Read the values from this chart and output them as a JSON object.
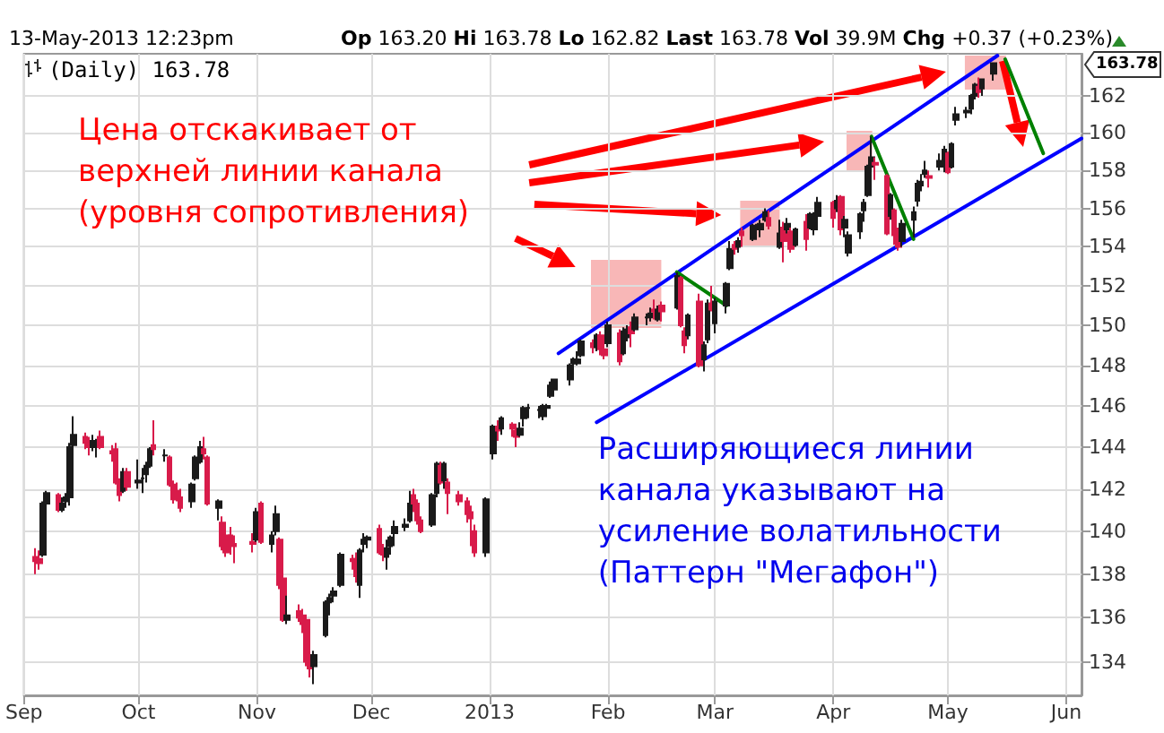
{
  "chart_data": {
    "type": "candlestick",
    "subtitle": "13-May-2013 12:23pm",
    "annotations": [
      "Op 163.20 Hi 163.78 Lo 162.82 Last 163.78 Vol 39.9M Chg +0.37 (+0.23%)",
      "(Daily) 163.78",
      "Цена отскакивает от\nверхней линии канала\n(уровня сопротивления)",
      "Расширяющиеся линии\nканала указывают на\nусиление волатильности\n(Паттерн \"Мегафон\")",
      "163.78"
    ],
    "colors": [
      "#d81b4a",
      "#d81b4a",
      "#1a1a1a",
      "#1a1a1a",
      "#d81b4a",
      "#1a1a1a",
      "#1a1a1a",
      "#1a1a1a",
      "#1a1a1a",
      "#d81b4a",
      "#d81b4a",
      "#1a1a1a",
      "#1a1a1a",
      "#d81b4a",
      "#d81b4a",
      "#d81b4a",
      "#d81b4a",
      "#1a1a1a",
      "#d81b4a",
      "#1a1a1a",
      "#1a1a1a",
      "#1a1a1a",
      "#1a1a1a",
      "#d81b4a",
      "#1a1a1a",
      "#d81b4a",
      "#d81b4a",
      "#d81b4a",
      "#d81b4a",
      "#1a1a1a",
      "#1a1a1a",
      "#1a1a1a",
      "#d81b4a",
      "#d81b4a",
      "#1a1a1a",
      "#d81b4a",
      "#d81b4a",
      "#d81b4a",
      "#d81b4a",
      "#d81b4a",
      "#1a1a1a",
      "#d81b4a",
      "#1a1a1a",
      "#1a1a1a",
      "#d81b4a",
      "#d81b4a",
      "#1a1a1a",
      "#d81b4a",
      "#d81b4a",
      "#d81b4a",
      "#d81b4a",
      "#1a1a1a",
      "#1a1a1a",
      "#1a1a1a",
      "#1a1a1a",
      "#1a1a1a",
      "#d81b4a",
      "#d81b4a",
      "#1a1a1a",
      "#1a1a1a",
      "#1a1a1a",
      "#d81b4a",
      "#d81b4a",
      "#1a1a1a",
      "#1a1a1a",
      "#1a1a1a",
      "#1a1a1a",
      "#1a1a1a",
      "#d81b4a",
      "#d81b4a",
      "#d81b4a",
      "#1a1a1a",
      "#1a1a1a",
      "#d81b4a",
      "#1a1a1a",
      "#d81b4a",
      "#d81b4a",
      "#d81b4a",
      "#d81b4a",
      "#d81b4a",
      "#1a1a1a",
      "#1a1a1a",
      "#d81b4a",
      "#1a1a1a",
      "#d81b4a",
      "#d81b4a",
      "#1a1a1a",
      "#1a1a1a",
      "#1a1a1a",
      "#1a1a1a",
      "#1a1a1a",
      "#1a1a1a",
      "#1a1a1a",
      "#1a1a1a",
      "#1a1a1a",
      "#1a1a1a",
      "#1a1a1a",
      "#1a1a1a",
      "#d81b4a",
      "#1a1a1a",
      "#d81b4a",
      "#d81b4a",
      "#1a1a1a",
      "#d81b4a",
      "#1a1a1a",
      "#1a1a1a",
      "#d81b4a",
      "#1a1a1a",
      "#1a1a1a",
      "#1a1a1a",
      "#d81b4a",
      "#1a1a1a",
      "#d81b4a",
      "#1a1a1a",
      "#d81b4a",
      "#d81b4a",
      "#1a1a1a",
      "#d81b4a",
      "#1a1a1a",
      "#1a1a1a",
      "#d81b4a",
      "#1a1a1a",
      "#1a1a1a",
      "#1a1a1a",
      "#d81b4a",
      "#1a1a1a",
      "#d81b4a",
      "#1a1a1a",
      "#1a1a1a",
      "#1a1a1a",
      "#1a1a1a",
      "#d81b4a",
      "#1a1a1a",
      "#d81b4a",
      "#1a1a1a",
      "#d81b4a",
      "#1a1a1a",
      "#d81b4a",
      "#1a1a1a",
      "#1a1a1a",
      "#1a1a1a",
      "#d81b4a",
      "#1a1a1a",
      "#d81b4a",
      "#1a1a1a",
      "#1a1a1a",
      "#1a1a1a",
      "#1a1a1a",
      "#1a1a1a",
      "#1a1a1a",
      "#d81b4a",
      "#d81b4a",
      "#1a1a1a",
      "#d81b4a",
      "#d81b4a",
      "#1a1a1a",
      "#1a1a1a",
      "#1a1a1a",
      "#1a1a1a",
      "#1a1a1a",
      "#d81b4a",
      "#1a1a1a",
      "#1a1a1a",
      "#d81b4a",
      "#1a1a1a",
      "#1a1a1a",
      "#1a1a1a",
      "#1a1a1a",
      "#1a1a1a",
      "#d81b4a",
      "#1a1a1a",
      "#1a1a1a"
    ],
    "log": true,
    "grid": true,
    "xlim": [
      "2012-09-01",
      "2013-06-05"
    ],
    "xticks": [
      {
        "value": "2012-09-01",
        "label": "Sep"
      },
      {
        "value": "2012-10-01",
        "label": "Oct"
      },
      {
        "value": "2012-11-01",
        "label": "Nov"
      },
      {
        "value": "2012-12-01",
        "label": "Dec"
      },
      {
        "value": "2013-01-01",
        "label": "2013"
      },
      {
        "value": "2013-02-01",
        "label": "Feb"
      },
      {
        "value": "2013-03-01",
        "label": "Mar"
      },
      {
        "value": "2013-04-01",
        "label": "Apr"
      },
      {
        "value": "2013-05-01",
        "label": "May"
      },
      {
        "value": "2013-06-01",
        "label": "Jun"
      }
    ],
    "ylim": [
      132.5,
      164.3
    ],
    "yticks": [
      134,
      136,
      138,
      140,
      142,
      144,
      146,
      148,
      150,
      152,
      154,
      156,
      158,
      160,
      162
    ],
    "x": [
      "2012-09-04",
      "2012-09-05",
      "2012-09-06",
      "2012-09-07",
      "2012-09-10",
      "2012-09-11",
      "2012-09-12",
      "2012-09-13",
      "2012-09-14",
      "2012-09-17",
      "2012-09-18",
      "2012-09-19",
      "2012-09-20",
      "2012-09-21",
      "2012-09-24",
      "2012-09-25",
      "2012-09-26",
      "2012-09-27",
      "2012-09-28",
      "2012-10-01",
      "2012-10-02",
      "2012-10-03",
      "2012-10-04",
      "2012-10-05",
      "2012-10-08",
      "2012-10-09",
      "2012-10-10",
      "2012-10-11",
      "2012-10-12",
      "2012-10-15",
      "2012-10-16",
      "2012-10-17",
      "2012-10-18",
      "2012-10-19",
      "2012-10-22",
      "2012-10-23",
      "2012-10-24",
      "2012-10-25",
      "2012-10-26",
      "2012-10-31",
      "2012-11-01",
      "2012-11-02",
      "2012-11-05",
      "2012-11-06",
      "2012-11-07",
      "2012-11-08",
      "2012-11-09",
      "2012-11-12",
      "2012-11-13",
      "2012-11-14",
      "2012-11-15",
      "2012-11-16",
      "2012-11-19",
      "2012-11-20",
      "2012-11-21",
      "2012-11-23",
      "2012-11-26",
      "2012-11-27",
      "2012-11-28",
      "2012-11-29",
      "2012-11-30",
      "2012-12-03",
      "2012-12-04",
      "2012-12-05",
      "2012-12-06",
      "2012-12-07",
      "2012-12-10",
      "2012-12-11",
      "2012-12-12",
      "2012-12-13",
      "2012-12-14",
      "2012-12-17",
      "2012-12-18",
      "2012-12-19",
      "2012-12-20",
      "2012-12-21",
      "2012-12-24",
      "2012-12-26",
      "2012-12-27",
      "2012-12-28",
      "2012-12-31",
      "2013-01-02",
      "2013-01-03",
      "2013-01-04",
      "2013-01-07",
      "2013-01-08",
      "2013-01-09",
      "2013-01-10",
      "2013-01-11",
      "2013-01-14",
      "2013-01-15",
      "2013-01-16",
      "2013-01-17",
      "2013-01-18",
      "2013-01-22",
      "2013-01-23",
      "2013-01-24",
      "2013-01-25",
      "2013-01-28",
      "2013-01-29",
      "2013-01-30",
      "2013-01-31",
      "2013-02-01",
      "2013-02-04",
      "2013-02-05",
      "2013-02-06",
      "2013-02-07",
      "2013-02-08",
      "2013-02-11",
      "2013-02-12",
      "2013-02-13",
      "2013-02-14",
      "2013-02-15",
      "2013-02-19",
      "2013-02-20",
      "2013-02-21",
      "2013-02-22",
      "2013-02-25",
      "2013-02-26",
      "2013-02-27",
      "2013-02-28",
      "2013-03-01",
      "2013-03-04",
      "2013-03-05",
      "2013-03-06",
      "2013-03-07",
      "2013-03-08",
      "2013-03-11",
      "2013-03-12",
      "2013-03-13",
      "2013-03-14",
      "2013-03-15",
      "2013-03-18",
      "2013-03-19",
      "2013-03-20",
      "2013-03-21",
      "2013-03-22",
      "2013-03-25",
      "2013-03-26",
      "2013-03-27",
      "2013-03-28",
      "2013-04-01",
      "2013-04-02",
      "2013-04-03",
      "2013-04-04",
      "2013-04-05",
      "2013-04-08",
      "2013-04-09",
      "2013-04-10",
      "2013-04-11",
      "2013-04-12",
      "2013-04-15",
      "2013-04-16",
      "2013-04-17",
      "2013-04-18",
      "2013-04-19",
      "2013-04-22",
      "2013-04-23",
      "2013-04-24",
      "2013-04-25",
      "2013-04-26",
      "2013-04-29",
      "2013-04-30",
      "2013-05-01",
      "2013-05-02",
      "2013-05-03",
      "2013-05-06",
      "2013-05-07",
      "2013-05-08",
      "2013-05-09",
      "2013-05-10",
      "2013-05-13"
    ],
    "ohlc": [
      [
        138.8,
        139.2,
        138.0,
        138.6
      ],
      [
        138.7,
        139.1,
        138.2,
        138.5
      ],
      [
        138.9,
        141.4,
        138.8,
        141.3
      ],
      [
        141.3,
        141.9,
        141.0,
        141.8
      ],
      [
        141.7,
        141.8,
        140.9,
        141.0
      ],
      [
        141.0,
        141.6,
        140.9,
        141.3
      ],
      [
        141.4,
        141.8,
        141.1,
        141.6
      ],
      [
        141.6,
        144.2,
        141.2,
        144.0
      ],
      [
        144.1,
        145.5,
        143.9,
        144.6
      ],
      [
        144.5,
        144.7,
        143.9,
        144.2
      ],
      [
        144.2,
        144.5,
        143.6,
        144.0
      ],
      [
        144.0,
        144.6,
        143.8,
        144.3
      ],
      [
        144.0,
        144.4,
        143.5,
        144.2
      ],
      [
        144.5,
        144.8,
        143.9,
        144.0
      ],
      [
        143.8,
        144.1,
        143.3,
        143.7
      ],
      [
        143.9,
        144.2,
        142.2,
        142.3
      ],
      [
        142.3,
        142.5,
        141.4,
        141.7
      ],
      [
        141.9,
        143.0,
        141.8,
        142.8
      ],
      [
        142.8,
        143.0,
        141.9,
        142.1
      ],
      [
        142.3,
        143.4,
        142.0,
        142.4
      ],
      [
        142.5,
        143.0,
        141.8,
        142.5
      ],
      [
        142.7,
        143.3,
        142.3,
        143.1
      ],
      [
        143.1,
        144.0,
        143.0,
        143.9
      ],
      [
        144.1,
        145.3,
        143.6,
        143.9
      ],
      [
        143.6,
        143.9,
        143.3,
        143.6
      ],
      [
        143.5,
        143.6,
        142.1,
        142.2
      ],
      [
        142.2,
        142.4,
        141.3,
        141.5
      ],
      [
        141.9,
        142.3,
        141.4,
        141.5
      ],
      [
        141.6,
        142.0,
        140.9,
        141.1
      ],
      [
        141.4,
        142.3,
        141.1,
        142.2
      ],
      [
        142.5,
        143.6,
        142.4,
        143.5
      ],
      [
        143.3,
        144.3,
        143.2,
        144.0
      ],
      [
        143.9,
        144.5,
        143.4,
        143.7
      ],
      [
        143.5,
        143.6,
        141.2,
        141.3
      ],
      [
        141.1,
        141.5,
        140.5,
        141.4
      ],
      [
        140.4,
        140.7,
        139.1,
        139.3
      ],
      [
        139.8,
        140.0,
        138.8,
        139.0
      ],
      [
        139.8,
        140.2,
        138.9,
        139.4
      ],
      [
        139.4,
        139.8,
        138.5,
        139.3
      ],
      [
        139.5,
        139.9,
        139.0,
        139.4
      ],
      [
        139.6,
        141.1,
        139.5,
        140.9
      ],
      [
        141.3,
        141.4,
        139.4,
        139.5
      ],
      [
        139.4,
        140.0,
        139.0,
        139.8
      ],
      [
        140.0,
        141.2,
        139.8,
        140.8
      ],
      [
        139.6,
        139.7,
        137.3,
        137.5
      ],
      [
        137.8,
        138.0,
        135.8,
        135.9
      ],
      [
        135.9,
        137.0,
        135.7,
        136.1
      ],
      [
        136.3,
        136.6,
        135.8,
        136.0
      ],
      [
        136.1,
        136.4,
        135.3,
        135.7
      ],
      [
        135.9,
        136.0,
        133.8,
        134.0
      ],
      [
        134.0,
        134.4,
        133.3,
        133.7
      ],
      [
        133.8,
        134.5,
        133.0,
        134.3
      ],
      [
        135.2,
        136.8,
        135.1,
        136.7
      ],
      [
        136.7,
        137.1,
        136.1,
        136.9
      ],
      [
        137.0,
        137.4,
        136.7,
        137.2
      ],
      [
        137.5,
        139.0,
        137.4,
        138.9
      ],
      [
        138.7,
        138.9,
        138.2,
        138.6
      ],
      [
        138.7,
        139.0,
        137.6,
        137.9
      ],
      [
        137.5,
        139.2,
        136.9,
        139.1
      ],
      [
        139.4,
        139.9,
        139.0,
        139.6
      ],
      [
        139.6,
        139.8,
        139.2,
        139.7
      ],
      [
        140.1,
        140.3,
        138.9,
        139.0
      ],
      [
        139.1,
        139.4,
        138.6,
        138.9
      ],
      [
        138.8,
        139.6,
        138.2,
        139.2
      ],
      [
        139.3,
        139.8,
        138.9,
        139.7
      ],
      [
        139.9,
        140.5,
        139.3,
        140.2
      ],
      [
        140.2,
        140.6,
        140.0,
        140.3
      ],
      [
        140.5,
        141.9,
        140.4,
        141.3
      ],
      [
        141.7,
        142.0,
        140.9,
        141.3
      ],
      [
        141.3,
        141.5,
        140.3,
        140.5
      ],
      [
        140.5,
        140.7,
        139.9,
        140.0
      ],
      [
        140.3,
        141.8,
        140.2,
        141.7
      ],
      [
        141.8,
        143.3,
        141.6,
        143.2
      ],
      [
        143.1,
        143.3,
        142.2,
        142.3
      ],
      [
        142.4,
        143.3,
        142.0,
        143.2
      ],
      [
        142.3,
        142.5,
        140.8,
        141.8
      ],
      [
        141.7,
        141.9,
        141.2,
        141.4
      ],
      [
        141.4,
        141.6,
        140.4,
        140.8
      ],
      [
        140.9,
        141.2,
        139.3,
        140.6
      ],
      [
        140.0,
        140.3,
        138.8,
        139.0
      ],
      [
        139.0,
        141.6,
        138.8,
        141.5
      ],
      [
        143.7,
        145.1,
        143.4,
        145.0
      ],
      [
        145.0,
        145.3,
        144.3,
        144.8
      ],
      [
        144.9,
        145.5,
        144.6,
        145.4
      ],
      [
        145.1,
        145.2,
        144.5,
        144.9
      ],
      [
        144.8,
        145.0,
        144.0,
        144.5
      ],
      [
        144.6,
        145.2,
        144.5,
        144.9
      ],
      [
        145.4,
        146.0,
        145.0,
        145.9
      ],
      [
        145.9,
        146.1,
        145.4,
        145.9
      ],
      [
        145.8,
        146.0,
        145.4,
        145.8
      ],
      [
        145.5,
        146.1,
        145.3,
        146.0
      ],
      [
        145.9,
        146.1,
        145.6,
        146.0
      ],
      [
        146.5,
        147.2,
        146.4,
        147.0
      ],
      [
        146.8,
        147.3,
        146.6,
        147.3
      ],
      [
        147.3,
        148.1,
        147.0,
        148.0
      ],
      [
        148.1,
        148.4,
        147.8,
        148.3
      ],
      [
        148.1,
        148.7,
        148.0,
        148.3
      ],
      [
        148.5,
        149.3,
        148.4,
        149.2
      ],
      [
        149.1,
        149.3,
        148.6,
        148.9
      ],
      [
        148.9,
        149.6,
        148.7,
        149.5
      ],
      [
        149.5,
        149.7,
        148.5,
        148.8
      ],
      [
        148.8,
        149.1,
        148.3,
        148.5
      ],
      [
        149.1,
        150.2,
        148.9,
        150.0
      ],
      [
        149.6,
        149.8,
        148.0,
        148.2
      ],
      [
        148.6,
        149.9,
        148.5,
        149.7
      ],
      [
        149.4,
        150.0,
        149.2,
        149.8
      ],
      [
        149.9,
        150.2,
        148.9,
        149.6
      ],
      [
        149.8,
        150.6,
        149.7,
        150.4
      ],
      [
        150.4,
        150.6,
        150.0,
        150.4
      ],
      [
        150.4,
        150.9,
        150.2,
        150.6
      ],
      [
        150.8,
        151.3,
        150.3,
        150.7
      ],
      [
        150.3,
        151.0,
        150.2,
        150.8
      ],
      [
        151.0,
        151.2,
        150.2,
        150.7
      ],
      [
        150.9,
        152.7,
        150.8,
        152.5
      ],
      [
        152.4,
        152.5,
        149.9,
        150.0
      ],
      [
        149.7,
        149.9,
        148.6,
        149.0
      ],
      [
        149.5,
        150.6,
        149.3,
        150.5
      ],
      [
        151.2,
        151.6,
        147.9,
        148.0
      ],
      [
        148.3,
        149.2,
        147.7,
        149.0
      ],
      [
        149.3,
        151.3,
        149.1,
        151.1
      ],
      [
        151.1,
        152.0,
        150.7,
        150.8
      ],
      [
        150.1,
        151.4,
        149.6,
        151.2
      ],
      [
        151.0,
        152.2,
        150.6,
        152.1
      ],
      [
        152.9,
        154.3,
        152.8,
        153.9
      ],
      [
        154.1,
        154.3,
        153.6,
        153.9
      ],
      [
        154.0,
        154.5,
        153.7,
        154.3
      ],
      [
        154.8,
        155.0,
        154.0,
        154.6
      ],
      [
        154.4,
        155.2,
        154.3,
        155.1
      ],
      [
        154.9,
        155.2,
        154.5,
        154.9
      ],
      [
        154.9,
        155.4,
        154.5,
        155.2
      ],
      [
        155.4,
        156.0,
        155.3,
        155.8
      ],
      [
        155.5,
        155.9,
        154.9,
        155.1
      ],
      [
        154.0,
        155.4,
        153.9,
        154.7
      ],
      [
        155.0,
        155.3,
        153.2,
        154.3
      ],
      [
        154.9,
        155.5,
        154.7,
        155.2
      ],
      [
        154.8,
        155.0,
        153.7,
        153.9
      ],
      [
        154.1,
        155.0,
        154.0,
        154.9
      ],
      [
        155.3,
        155.7,
        153.8,
        154.4
      ],
      [
        155.0,
        155.8,
        154.9,
        155.7
      ],
      [
        154.9,
        155.8,
        154.6,
        155.6
      ],
      [
        155.6,
        156.6,
        155.4,
        156.3
      ],
      [
        156.3,
        156.4,
        155.0,
        155.5
      ],
      [
        156.0,
        156.7,
        155.8,
        156.4
      ],
      [
        156.6,
        156.7,
        154.6,
        154.9
      ],
      [
        155.0,
        155.6,
        154.5,
        155.4
      ],
      [
        153.7,
        154.8,
        153.5,
        154.6
      ],
      [
        154.8,
        155.8,
        154.4,
        155.7
      ],
      [
        155.9,
        156.5,
        155.3,
        156.3
      ],
      [
        156.7,
        158.3,
        156.6,
        158.2
      ],
      [
        158.2,
        159.8,
        157.9,
        158.7
      ],
      [
        158.4,
        158.7,
        157.5,
        158.3
      ],
      [
        157.7,
        157.8,
        154.6,
        154.7
      ],
      [
        155.6,
        156.8,
        155.4,
        156.7
      ],
      [
        155.9,
        156.0,
        154.1,
        154.6
      ],
      [
        154.8,
        155.0,
        153.8,
        154.0
      ],
      [
        154.3,
        155.4,
        154.0,
        155.2
      ],
      [
        155.4,
        156.1,
        154.5,
        155.8
      ],
      [
        156.4,
        157.5,
        156.1,
        157.3
      ],
      [
        157.2,
        157.8,
        156.9,
        157.4
      ],
      [
        157.8,
        158.5,
        157.6,
        158.0
      ],
      [
        157.7,
        158.0,
        157.1,
        157.6
      ],
      [
        158.2,
        158.9,
        158.0,
        158.5
      ],
      [
        158.4,
        159.3,
        157.9,
        159.1
      ],
      [
        158.9,
        159.0,
        157.8,
        157.9
      ],
      [
        158.2,
        159.5,
        158.1,
        159.4
      ],
      [
        160.7,
        161.4,
        160.4,
        161.0
      ],
      [
        161.1,
        161.4,
        160.8,
        161.2
      ],
      [
        161.3,
        162.1,
        161.0,
        162.0
      ],
      [
        162.0,
        162.7,
        161.8,
        162.6
      ],
      [
        162.5,
        163.0,
        161.9,
        162.2
      ],
      [
        162.4,
        162.9,
        162.0,
        162.9
      ],
      [
        163.2,
        163.78,
        162.82,
        163.78
      ]
    ],
    "series": [
      {
        "type": "line",
        "color": "#0000ff",
        "x": [
          "2013-01-19",
          "2013-05-14"
        ],
        "values": [
          148.6,
          164.2
        ]
      },
      {
        "type": "line",
        "color": "#0000ff",
        "x": [
          "2013-01-29",
          "2013-06-05"
        ],
        "values": [
          145.2,
          159.7
        ]
      },
      {
        "type": "line",
        "color": "#008000",
        "x": [
          "2013-02-19",
          "2013-03-04"
        ],
        "values": [
          152.7,
          151.0
        ]
      },
      {
        "type": "line",
        "color": "#008000",
        "x": [
          "2013-04-11",
          "2013-04-22"
        ],
        "values": [
          159.8,
          154.4
        ]
      },
      {
        "type": "line",
        "color": "#008000",
        "x": [
          "2013-05-16",
          "2013-05-26"
        ],
        "values": [
          164.0,
          158.9
        ]
      }
    ]
  }
}
